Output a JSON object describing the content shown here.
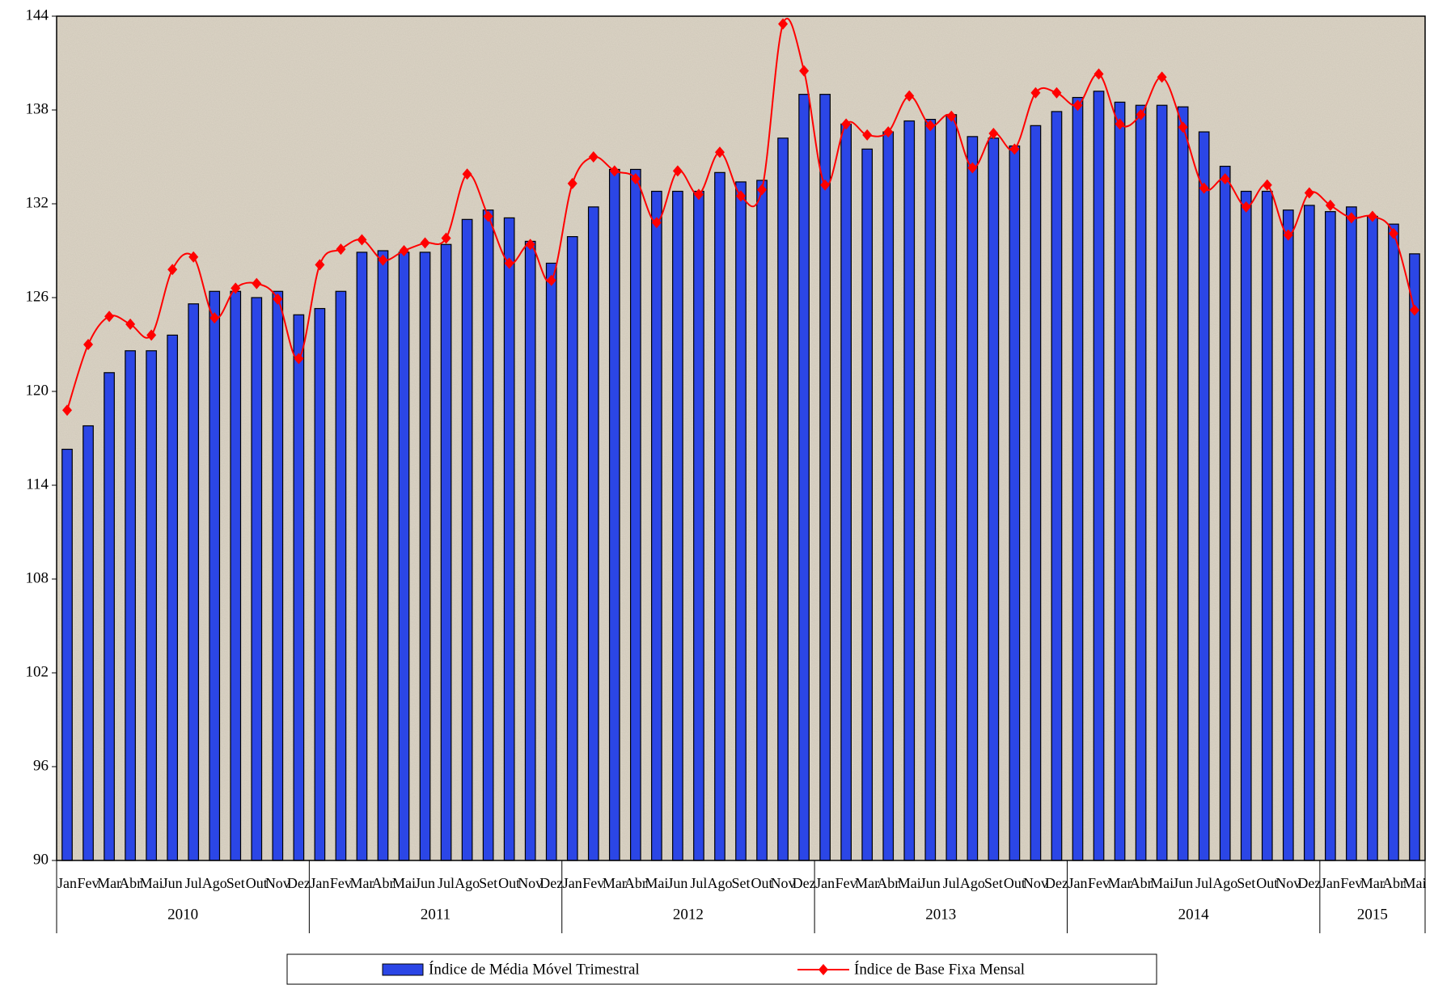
{
  "chart_data": {
    "type": "bar-line",
    "categories": [
      "Jan",
      "Fev",
      "Mar",
      "Abr",
      "Mai",
      "Jun",
      "Jul",
      "Ago",
      "Set",
      "Out",
      "Nov",
      "Dez",
      "Jan",
      "Fev",
      "Mar",
      "Abr",
      "Mai",
      "Jun",
      "Jul",
      "Ago",
      "Set",
      "Out",
      "Nov",
      "Dez",
      "Jan",
      "Fev",
      "Mar",
      "Abr",
      "Mai",
      "Jun",
      "Jul",
      "Ago",
      "Set",
      "Out",
      "Nov",
      "Dez",
      "Jan",
      "Fev",
      "Mar",
      "Abr",
      "Mai",
      "Jun",
      "Jul",
      "Ago",
      "Set",
      "Out",
      "Nov",
      "Dez",
      "Jan",
      "Fev",
      "Mar",
      "Abr",
      "Mai",
      "Jun",
      "Jul",
      "Ago",
      "Set",
      "Out",
      "Nov",
      "Dez",
      "Jan",
      "Fev",
      "Mar",
      "Abr",
      "Mai"
    ],
    "years": [
      "2010",
      "2011",
      "2012",
      "2013",
      "2014",
      "2015"
    ],
    "series": [
      {
        "name": "Índice de Média Móvel Trimestral",
        "type": "bar",
        "color": "#2b46e6",
        "values": [
          116.3,
          117.8,
          121.2,
          122.6,
          122.6,
          123.6,
          125.6,
          126.4,
          126.4,
          126.0,
          126.4,
          124.9,
          125.3,
          126.4,
          128.9,
          129.0,
          128.9,
          128.9,
          129.4,
          131.0,
          131.6,
          131.1,
          129.6,
          128.2,
          129.9,
          131.8,
          134.2,
          134.2,
          132.8,
          132.8,
          132.8,
          134.0,
          133.4,
          133.5,
          136.2,
          139.0,
          139.0,
          137.1,
          135.5,
          136.6,
          137.3,
          137.4,
          137.7,
          136.3,
          136.2,
          135.7,
          137.0,
          137.9,
          138.8,
          139.2,
          138.5,
          138.3,
          138.3,
          138.2,
          136.6,
          134.4,
          132.8,
          132.8,
          131.6,
          131.9,
          131.5,
          131.8,
          131.2,
          130.7,
          128.8
        ]
      },
      {
        "name": "Índice de Base Fixa Mensal",
        "type": "line",
        "color": "#ff0000",
        "values": [
          118.8,
          123.0,
          124.8,
          124.3,
          123.6,
          127.8,
          128.6,
          124.7,
          126.6,
          126.9,
          125.9,
          122.1,
          128.1,
          129.1,
          129.7,
          128.4,
          129.0,
          129.5,
          129.8,
          133.9,
          131.2,
          128.2,
          129.4,
          127.1,
          133.3,
          135.0,
          134.1,
          133.6,
          130.8,
          134.1,
          132.6,
          135.3,
          132.5,
          132.9,
          143.5,
          140.5,
          133.2,
          137.1,
          136.4,
          136.6,
          138.9,
          137.0,
          137.6,
          134.3,
          136.5,
          135.5,
          139.1,
          139.1,
          138.3,
          140.3,
          137.1,
          137.7,
          140.1,
          136.9,
          133.0,
          133.6,
          131.8,
          133.2,
          130.0,
          132.7,
          131.9,
          131.1,
          131.2,
          130.1,
          125.2
        ]
      }
    ],
    "ylim": [
      90,
      144
    ],
    "yticks": [
      90,
      96,
      102,
      108,
      114,
      120,
      126,
      132,
      138,
      144
    ]
  }
}
